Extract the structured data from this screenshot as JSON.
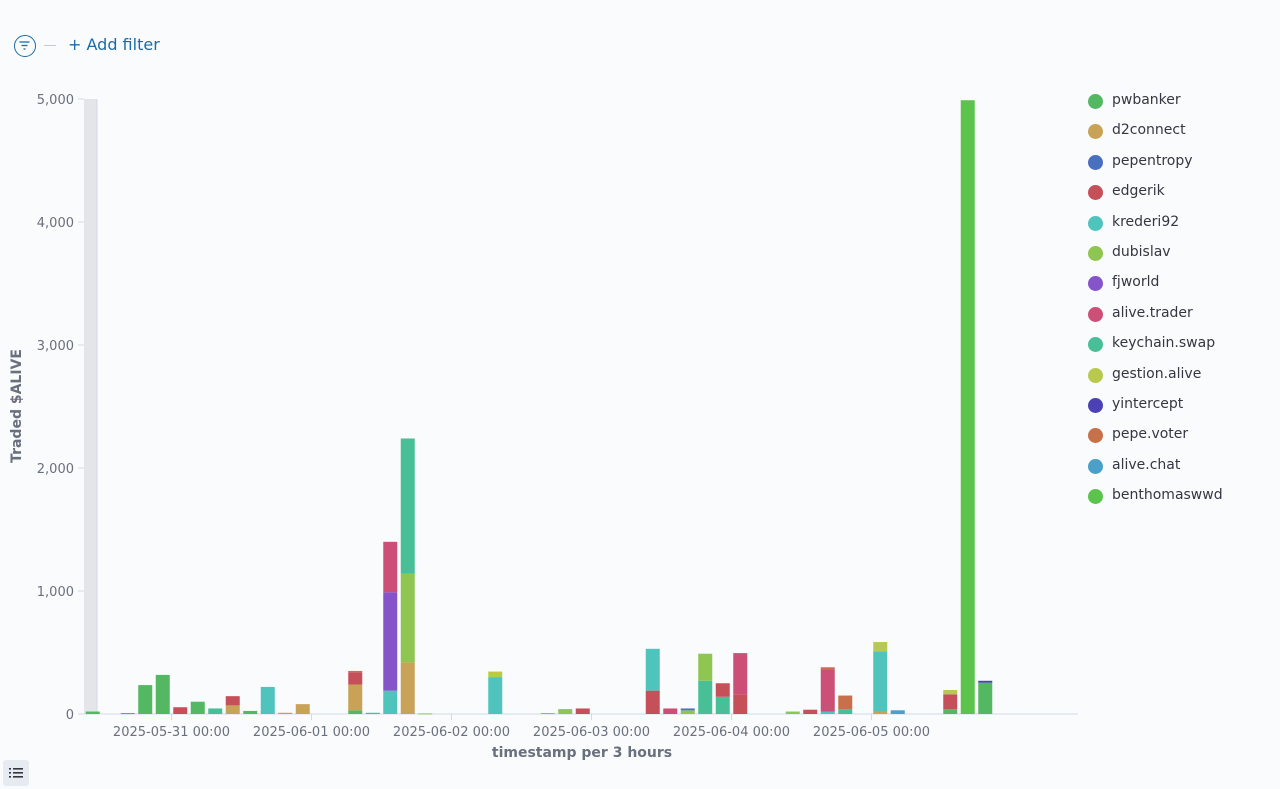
{
  "toolbar": {
    "add_filter_label": "+ Add filter"
  },
  "colors": {
    "accent": "#1a6ba8",
    "axis": "#d3dae6",
    "text": "#69707d"
  },
  "icons": {
    "filter": "filter-icon",
    "list": "list-icon"
  },
  "chart_data": {
    "type": "bar",
    "stacked": true,
    "xlabel": "timestamp per 3 hours",
    "ylabel": "Traded $ALIVE",
    "ylim": [
      0,
      5000
    ],
    "yticks": [
      0,
      1000,
      2000,
      3000,
      4000,
      5000
    ],
    "ytick_labels": [
      "0",
      "1,000",
      "2,000",
      "3,000",
      "4,000",
      "5,000"
    ],
    "xticks": [
      "2025-05-31 00:00",
      "2025-06-01 00:00",
      "2025-06-02 00:00",
      "2025-06-03 00:00",
      "2025-06-04 00:00",
      "2025-06-05 00:00"
    ],
    "x_start": "2025-05-30 09:00",
    "bucket_hours": 3,
    "legend_position": "right",
    "grid": false,
    "series": [
      {
        "name": "pwbanker",
        "color": "#54b862"
      },
      {
        "name": "d2connect",
        "color": "#c8a257"
      },
      {
        "name": "pepentropy",
        "color": "#4a6fbf"
      },
      {
        "name": "edgerik",
        "color": "#c6505a"
      },
      {
        "name": "krederi92",
        "color": "#4fc4bd"
      },
      {
        "name": "dubislav",
        "color": "#8fc551"
      },
      {
        "name": "fjworld",
        "color": "#8554c9"
      },
      {
        "name": "alive.trader",
        "color": "#cc4f78"
      },
      {
        "name": "keychain.swap",
        "color": "#48bf97"
      },
      {
        "name": "gestion.alive",
        "color": "#b9c94d"
      },
      {
        "name": "yintercept",
        "color": "#4b41b5"
      },
      {
        "name": "pepe.voter",
        "color": "#c7714a"
      },
      {
        "name": "alive.chat",
        "color": "#4aa0c9"
      },
      {
        "name": "benthomaswwd",
        "color": "#5cc44d"
      }
    ],
    "bars": [
      {
        "x": "2025-05-30 09:00",
        "stack": [
          {
            "s": "pwbanker",
            "v": 20
          }
        ]
      },
      {
        "x": "2025-05-30 12:00",
        "stack": []
      },
      {
        "x": "2025-05-30 15:00",
        "stack": [
          {
            "s": "alive.chat",
            "v": 8
          }
        ]
      },
      {
        "x": "2025-05-30 18:00",
        "stack": [
          {
            "s": "pwbanker",
            "v": 235
          }
        ]
      },
      {
        "x": "2025-05-30 21:00",
        "stack": [
          {
            "s": "pwbanker",
            "v": 318
          }
        ]
      },
      {
        "x": "2025-05-31 00:00",
        "stack": [
          {
            "s": "edgerik",
            "v": 55
          }
        ]
      },
      {
        "x": "2025-05-31 03:00",
        "stack": [
          {
            "s": "pwbanker",
            "v": 100
          }
        ]
      },
      {
        "x": "2025-05-31 06:00",
        "stack": [
          {
            "s": "keychain.swap",
            "v": 45
          }
        ]
      },
      {
        "x": "2025-05-31 09:00",
        "stack": [
          {
            "s": "d2connect",
            "v": 70
          },
          {
            "s": "edgerik",
            "v": 75
          }
        ]
      },
      {
        "x": "2025-05-31 12:00",
        "stack": [
          {
            "s": "pwbanker",
            "v": 25
          }
        ]
      },
      {
        "x": "2025-05-31 15:00",
        "stack": [
          {
            "s": "krederi92",
            "v": 220
          }
        ]
      },
      {
        "x": "2025-05-31 18:00",
        "stack": [
          {
            "s": "d2connect",
            "v": 10
          }
        ]
      },
      {
        "x": "2025-05-31 21:00",
        "stack": [
          {
            "s": "d2connect",
            "v": 80
          }
        ]
      },
      {
        "x": "2025-06-01 00:00",
        "stack": []
      },
      {
        "x": "2025-06-01 03:00",
        "stack": []
      },
      {
        "x": "2025-06-01 06:00",
        "stack": [
          {
            "s": "pwbanker",
            "v": 30
          },
          {
            "s": "d2connect",
            "v": 210
          },
          {
            "s": "edgerik",
            "v": 100
          },
          {
            "s": "pepe.voter",
            "v": 10
          }
        ]
      },
      {
        "x": "2025-06-01 09:00",
        "stack": [
          {
            "s": "keychain.swap",
            "v": 10
          }
        ]
      },
      {
        "x": "2025-06-01 12:00",
        "stack": [
          {
            "s": "krederi92",
            "v": 190
          },
          {
            "s": "fjworld",
            "v": 800
          },
          {
            "s": "alive.trader",
            "v": 410
          }
        ]
      },
      {
        "x": "2025-06-01 15:00",
        "stack": [
          {
            "s": "d2connect",
            "v": 420
          },
          {
            "s": "dubislav",
            "v": 720
          },
          {
            "s": "keychain.swap",
            "v": 1100
          }
        ]
      },
      {
        "x": "2025-06-01 18:00",
        "stack": [
          {
            "s": "dubislav",
            "v": 5
          }
        ]
      },
      {
        "x": "2025-06-01 21:00",
        "stack": []
      },
      {
        "x": "2025-06-02 00:00",
        "stack": []
      },
      {
        "x": "2025-06-02 03:00",
        "stack": []
      },
      {
        "x": "2025-06-02 06:00",
        "stack": [
          {
            "s": "krederi92",
            "v": 300
          },
          {
            "s": "gestion.alive",
            "v": 45
          }
        ]
      },
      {
        "x": "2025-06-02 09:00",
        "stack": []
      },
      {
        "x": "2025-06-02 12:00",
        "stack": []
      },
      {
        "x": "2025-06-02 15:00",
        "stack": [
          {
            "s": "dubislav",
            "v": 8
          }
        ]
      },
      {
        "x": "2025-06-02 18:00",
        "stack": [
          {
            "s": "dubislav",
            "v": 40
          }
        ]
      },
      {
        "x": "2025-06-02 21:00",
        "stack": [
          {
            "s": "edgerik",
            "v": 45
          }
        ]
      },
      {
        "x": "2025-06-03 00:00",
        "stack": []
      },
      {
        "x": "2025-06-03 03:00",
        "stack": []
      },
      {
        "x": "2025-06-03 06:00",
        "stack": []
      },
      {
        "x": "2025-06-03 09:00",
        "stack": [
          {
            "s": "edgerik",
            "v": 190
          },
          {
            "s": "krederi92",
            "v": 340
          }
        ]
      },
      {
        "x": "2025-06-03 12:00",
        "stack": [
          {
            "s": "alive.trader",
            "v": 45
          }
        ]
      },
      {
        "x": "2025-06-03 15:00",
        "stack": [
          {
            "s": "dubislav",
            "v": 30
          },
          {
            "s": "pepentropy",
            "v": 15
          }
        ]
      },
      {
        "x": "2025-06-03 18:00",
        "stack": [
          {
            "s": "keychain.swap",
            "v": 270
          },
          {
            "s": "dubislav",
            "v": 220
          }
        ]
      },
      {
        "x": "2025-06-03 21:00",
        "stack": [
          {
            "s": "keychain.swap",
            "v": 140
          },
          {
            "s": "edgerik",
            "v": 110
          }
        ]
      },
      {
        "x": "2025-06-04 00:00",
        "stack": [
          {
            "s": "edgerik",
            "v": 160
          },
          {
            "s": "alive.trader",
            "v": 335
          }
        ]
      },
      {
        "x": "2025-06-04 03:00",
        "stack": []
      },
      {
        "x": "2025-06-04 06:00",
        "stack": []
      },
      {
        "x": "2025-06-04 09:00",
        "stack": [
          {
            "s": "dubislav",
            "v": 20
          }
        ]
      },
      {
        "x": "2025-06-04 12:00",
        "stack": [
          {
            "s": "edgerik",
            "v": 35
          }
        ]
      },
      {
        "x": "2025-06-04 15:00",
        "stack": [
          {
            "s": "krederi92",
            "v": 20
          },
          {
            "s": "alive.trader",
            "v": 345
          },
          {
            "s": "pepe.voter",
            "v": 15
          }
        ]
      },
      {
        "x": "2025-06-04 18:00",
        "stack": [
          {
            "s": "keychain.swap",
            "v": 40
          },
          {
            "s": "pepe.voter",
            "v": 110
          }
        ]
      },
      {
        "x": "2025-06-04 21:00",
        "stack": []
      },
      {
        "x": "2025-06-05 00:00",
        "stack": [
          {
            "s": "d2connect",
            "v": 20
          },
          {
            "s": "krederi92",
            "v": 490
          },
          {
            "s": "gestion.alive",
            "v": 75
          }
        ]
      },
      {
        "x": "2025-06-05 03:00",
        "stack": [
          {
            "s": "alive.chat",
            "v": 30
          }
        ]
      },
      {
        "x": "2025-06-05 06:00",
        "stack": []
      },
      {
        "x": "2025-06-05 09:00",
        "stack": []
      },
      {
        "x": "2025-06-05 12:00",
        "stack": [
          {
            "s": "pwbanker",
            "v": 40
          },
          {
            "s": "edgerik",
            "v": 120
          },
          {
            "s": "gestion.alive",
            "v": 35
          }
        ]
      },
      {
        "x": "2025-06-05 15:00",
        "stack": [
          {
            "s": "benthomaswwd",
            "v": 4990
          }
        ]
      },
      {
        "x": "2025-06-05 18:00",
        "stack": [
          {
            "s": "pwbanker",
            "v": 255
          },
          {
            "s": "yintercept",
            "v": 15
          }
        ]
      },
      {
        "x": "2025-06-05 21:00",
        "stack": []
      }
    ]
  }
}
